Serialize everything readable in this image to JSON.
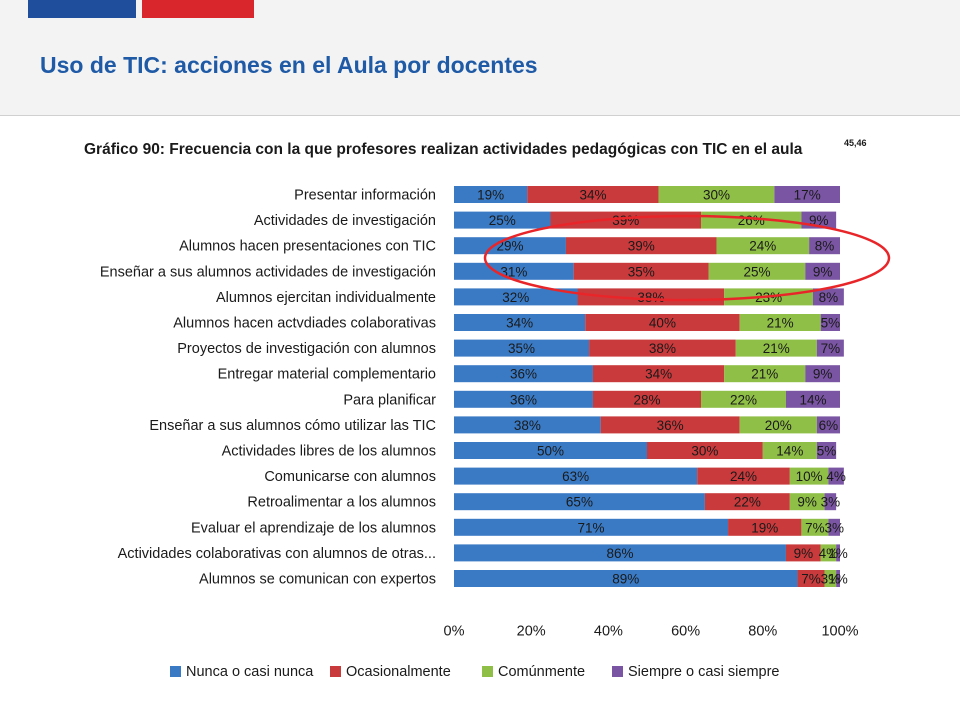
{
  "slide": {
    "title": "Uso de TIC: acciones en el Aula por docentes"
  },
  "colors": {
    "series": [
      "#3a7ac4",
      "#c93a3c",
      "#8fbf47",
      "#7a55a3"
    ],
    "title": "#1f5aa6",
    "flag_blue": "#1f4e9c",
    "flag_red": "#d9252c",
    "highlight": "#e8262a"
  },
  "chart_data": {
    "type": "bar",
    "orientation": "horizontal",
    "stacked": true,
    "title": "Gráfico 90: Frecuencia con la que profesores realizan actividades pedagógicas  con TIC en el aula",
    "title_superscript": "45,46",
    "categories": [
      "Presentar información",
      "Actividades de investigación",
      "Alumnos hacen presentaciones con TIC",
      "Enseñar a sus alumnos actividades de investigación",
      "Alumnos ejercitan individualmente",
      "Alumnos hacen actvdiades colaborativas",
      "Proyectos de investigación con alumnos",
      "Entregar material complementario",
      "Para planificar",
      "Enseñar a sus alumnos cómo utilizar las TIC",
      "Actividades libres de los alumnos",
      "Comunicarse  con alumnos",
      "Retroalimentar a los alumnos",
      "Evaluar el aprendizaje de los alumnos",
      "Actividades colaborativas con alumnos de otras...",
      "Alumnos se comunican con expertos"
    ],
    "series": [
      {
        "name": "Nunca o casi nunca",
        "values": [
          19,
          25,
          29,
          31,
          32,
          34,
          35,
          36,
          36,
          38,
          50,
          63,
          65,
          71,
          86,
          89
        ]
      },
      {
        "name": "Ocasionalmente",
        "values": [
          34,
          39,
          39,
          35,
          38,
          40,
          38,
          34,
          28,
          36,
          30,
          24,
          22,
          19,
          9,
          7
        ]
      },
      {
        "name": "Comúnmente",
        "values": [
          30,
          26,
          24,
          25,
          23,
          21,
          21,
          21,
          22,
          20,
          14,
          10,
          9,
          7,
          4,
          3
        ]
      },
      {
        "name": "Siempre o casi siempre",
        "values": [
          17,
          9,
          8,
          9,
          8,
          5,
          7,
          9,
          14,
          6,
          5,
          4,
          3,
          3,
          1,
          1
        ]
      }
    ],
    "value_suffix": "%",
    "xlim": [
      0,
      100
    ],
    "xticks": [
      "0%",
      "20%",
      "40%",
      "60%",
      "80%",
      "100%"
    ],
    "legend": "bottom",
    "highlighted_categories": [
      "Alumnos hacen presentaciones con TIC",
      "Enseñar a sus alumnos actividades de investigación"
    ]
  }
}
